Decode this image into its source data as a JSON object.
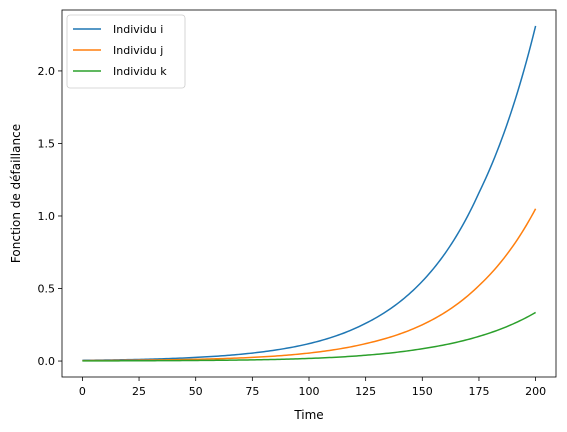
{
  "chart_data": {
    "type": "line",
    "title": "",
    "xlabel": "Time",
    "ylabel": "Fonction de défaillance",
    "xlim": [
      -9,
      209
    ],
    "ylim": [
      -0.11,
      2.42
    ],
    "xticks": [
      0,
      25,
      50,
      75,
      100,
      125,
      150,
      175,
      200
    ],
    "xtick_labels": [
      "0",
      "25",
      "50",
      "75",
      "100",
      "125",
      "150",
      "175",
      "200"
    ],
    "yticks": [
      0.0,
      0.5,
      1.0,
      1.5,
      2.0
    ],
    "ytick_labels": [
      "0.0",
      "0.5",
      "1.0",
      "1.5",
      "2.0"
    ],
    "grid": false,
    "legend": "top-left",
    "x": [
      0,
      25,
      50,
      75,
      100,
      125,
      150,
      175,
      200
    ],
    "series": [
      {
        "name": "Individu i",
        "color": "#1f77b4",
        "values": [
          0.005,
          0.011,
          0.025,
          0.055,
          0.12,
          0.26,
          0.55,
          1.16,
          2.31
        ]
      },
      {
        "name": "Individu j",
        "color": "#ff7f0e",
        "values": [
          0.003,
          0.006,
          0.012,
          0.025,
          0.055,
          0.12,
          0.25,
          0.52,
          1.05
        ]
      },
      {
        "name": "Individu k",
        "color": "#2ca02c",
        "values": [
          0.001,
          0.002,
          0.004,
          0.008,
          0.018,
          0.04,
          0.085,
          0.17,
          0.335
        ]
      }
    ]
  }
}
